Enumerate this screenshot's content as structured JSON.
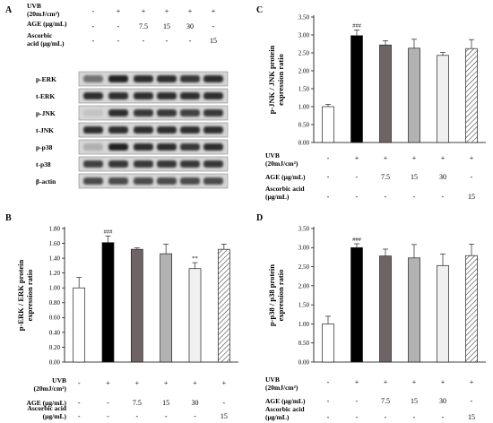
{
  "figure": {
    "panels": {
      "A": {
        "letter": "A",
        "treatments": [
          {
            "label": "UVB (20mJ/cm²)",
            "values": [
              "-",
              "+",
              "+",
              "+",
              "+",
              "+"
            ]
          },
          {
            "label": "AGE (μg/mL)",
            "values": [
              "-",
              "-",
              "7.5",
              "15",
              "30",
              "-"
            ]
          },
          {
            "label": "Ascorbic acid (μg/mL)",
            "values": [
              "-",
              "-",
              "-",
              "-",
              "-",
              "15"
            ]
          }
        ],
        "blots": [
          {
            "label": "p-ERK",
            "intensity": [
              0.55,
              0.95,
              0.9,
              0.9,
              0.85,
              0.9
            ]
          },
          {
            "label": "t-ERK",
            "intensity": [
              0.9,
              0.9,
              0.9,
              0.9,
              0.9,
              0.9
            ]
          },
          {
            "label": "p-JNK",
            "intensity": [
              0.15,
              0.9,
              0.85,
              0.85,
              0.8,
              0.85
            ]
          },
          {
            "label": "t-JNK",
            "intensity": [
              0.9,
              0.9,
              0.9,
              0.9,
              0.9,
              0.9
            ]
          },
          {
            "label": "p-p38",
            "intensity": [
              0.25,
              0.95,
              0.9,
              0.9,
              0.85,
              0.9
            ]
          },
          {
            "label": "t-p38",
            "intensity": [
              0.8,
              0.85,
              0.85,
              0.85,
              0.85,
              0.85
            ]
          },
          {
            "label": "β-actin",
            "intensity": [
              0.75,
              0.75,
              0.75,
              0.75,
              0.75,
              0.75
            ]
          }
        ]
      }
    },
    "treatment_rows": [
      {
        "label": "UVB (20mJ/cm²)",
        "values": [
          "-",
          "+",
          "+",
          "+",
          "+",
          "+"
        ]
      },
      {
        "label": "AGE (μg/mL)",
        "values": [
          "-",
          "-",
          "7.5",
          "15",
          "30",
          "-"
        ]
      },
      {
        "label": "Ascorbic acid (μg/mL)",
        "values": [
          "-",
          "-",
          "-",
          "-",
          "-",
          "15"
        ]
      }
    ],
    "bar_fills": [
      "#ffffff",
      "#000000",
      "#6e6466",
      "#b2b2b2",
      "#f0f0f0",
      "hatch"
    ]
  },
  "chart_data": [
    {
      "panel": "B",
      "type": "bar",
      "ylabel": "p-ERK / ERK protein expression ratio",
      "ylim": [
        0,
        1.8
      ],
      "yticks": [
        "0.00",
        "0.20",
        "0.40",
        "0.60",
        "0.80",
        "1.00",
        "1.20",
        "1.40",
        "1.60",
        "1.80"
      ],
      "values": [
        1.0,
        1.61,
        1.52,
        1.46,
        1.26,
        1.52
      ],
      "errors": [
        0.14,
        0.09,
        0.02,
        0.13,
        0.08,
        0.07
      ],
      "annotations": [
        "",
        "###",
        "",
        "",
        "**",
        ""
      ]
    },
    {
      "panel": "C",
      "type": "bar",
      "ylabel": "p-JNK / JNK protein expression ratio",
      "ylim": [
        0,
        3.5
      ],
      "yticks": [
        "0.00",
        "0.50",
        "1.00",
        "1.50",
        "2.00",
        "2.50",
        "3.00",
        "3.50"
      ],
      "values": [
        1.0,
        2.98,
        2.72,
        2.63,
        2.43,
        2.62
      ],
      "errors": [
        0.06,
        0.16,
        0.12,
        0.25,
        0.08,
        0.25
      ],
      "annotations": [
        "",
        "###",
        "",
        "",
        "",
        ""
      ]
    },
    {
      "panel": "D",
      "type": "bar",
      "ylabel": "p-p38 / p38 protein expression ratio",
      "ylim": [
        0,
        3.5
      ],
      "yticks": [
        "0.00",
        "0.50",
        "1.00",
        "1.50",
        "2.00",
        "2.50",
        "3.00",
        "3.50"
      ],
      "values": [
        1.0,
        3.0,
        2.78,
        2.73,
        2.53,
        2.79
      ],
      "errors": [
        0.2,
        0.1,
        0.18,
        0.35,
        0.3,
        0.3
      ],
      "annotations": [
        "",
        "###",
        "",
        "",
        "",
        ""
      ]
    }
  ]
}
